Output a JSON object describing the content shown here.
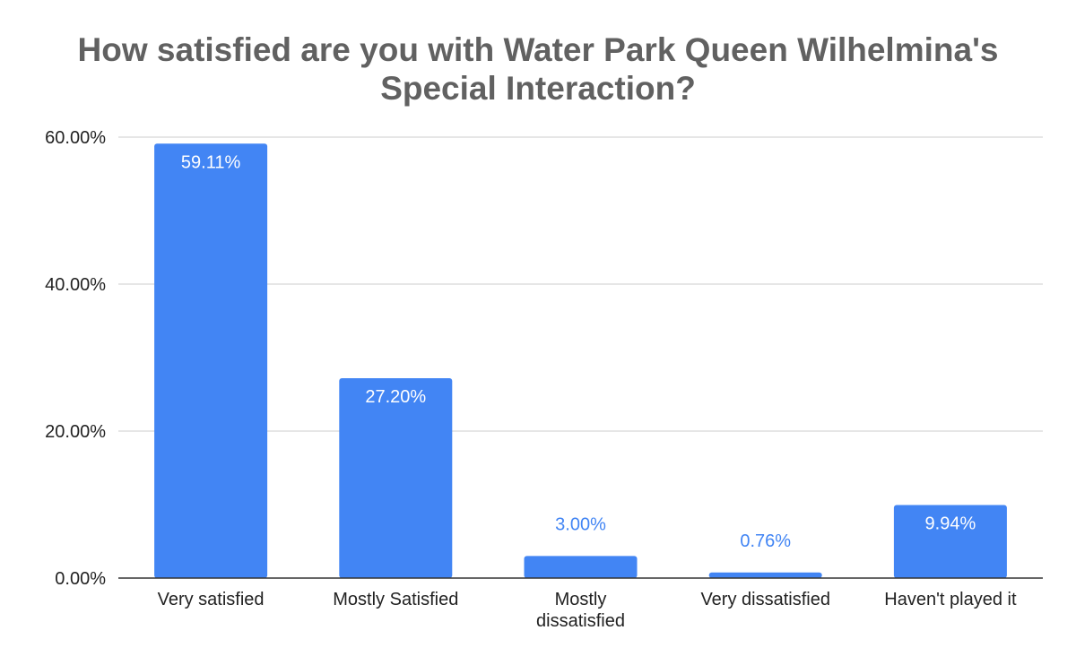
{
  "chart_data": {
    "type": "bar",
    "title_lines": [
      "How satisfied are you with Water Park Queen Wilhelmina's",
      "Special Interaction?"
    ],
    "categories": [
      [
        "Very satisfied"
      ],
      [
        "Mostly Satisfied"
      ],
      [
        "Mostly",
        "dissatisfied"
      ],
      [
        "Very dissatisfied"
      ],
      [
        "Haven't played it"
      ]
    ],
    "values": [
      59.11,
      27.2,
      3.0,
      0.76,
      9.94
    ],
    "data_labels": [
      "59.11%",
      "27.20%",
      "3.00%",
      "0.76%",
      "9.94%"
    ],
    "y_ticks": [
      0,
      20,
      40,
      60
    ],
    "y_tick_labels": [
      "0.00%",
      "20.00%",
      "40.00%",
      "60.00%"
    ],
    "ylim": [
      0,
      60
    ],
    "xlabel": "",
    "ylabel": "",
    "grid": true,
    "legend": "none",
    "colors": {
      "bar": "#4285f4",
      "label_inside": "#ffffff",
      "label_outside": "#4285f4",
      "grid": "#cccccc",
      "axis": "#333333",
      "title": "#616161"
    }
  }
}
